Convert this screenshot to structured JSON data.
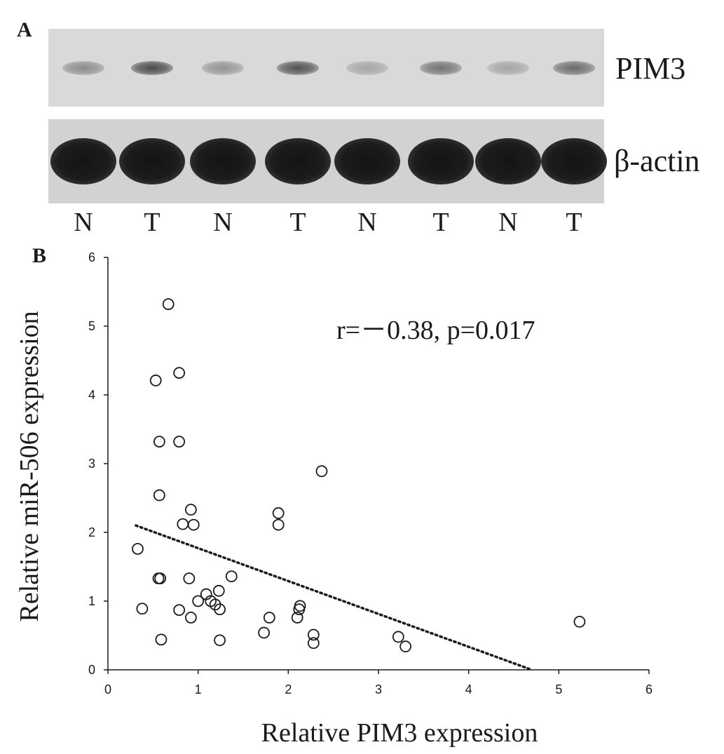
{
  "panels": {
    "a_label": "A",
    "b_label": "B"
  },
  "blot": {
    "rows": [
      {
        "name": "PIM3",
        "intensities": [
          0.35,
          0.75,
          0.3,
          0.7,
          0.2,
          0.5,
          0.2,
          0.55
        ]
      },
      {
        "name": "β-actin",
        "intensities": [
          1,
          1,
          1,
          1,
          1,
          1,
          1,
          1
        ]
      }
    ],
    "lanes": [
      "N",
      "T",
      "N",
      "T",
      "N",
      "T",
      "N",
      "T"
    ]
  },
  "chart_data": {
    "type": "scatter",
    "title": "",
    "xlabel": "Relative PIM3 expression",
    "ylabel": "Relative miR-506 expression",
    "xlim": [
      0,
      6
    ],
    "ylim": [
      0,
      6
    ],
    "xticks": [
      "0",
      "1",
      "2",
      "3",
      "4",
      "5",
      "6"
    ],
    "yticks": [
      "0",
      "1",
      "2",
      "3",
      "4",
      "5",
      "6"
    ],
    "annotation": "r=－0.38, p=0.017",
    "grid": false,
    "marker": "open-circle",
    "points": [
      {
        "x": 0.67,
        "y": 5.32
      },
      {
        "x": 0.53,
        "y": 4.21
      },
      {
        "x": 0.79,
        "y": 4.32
      },
      {
        "x": 0.57,
        "y": 3.32
      },
      {
        "x": 0.79,
        "y": 3.32
      },
      {
        "x": 0.57,
        "y": 2.54
      },
      {
        "x": 2.37,
        "y": 2.89
      },
      {
        "x": 0.92,
        "y": 2.33
      },
      {
        "x": 1.89,
        "y": 2.28
      },
      {
        "x": 0.83,
        "y": 2.12
      },
      {
        "x": 0.95,
        "y": 2.11
      },
      {
        "x": 1.89,
        "y": 2.11
      },
      {
        "x": 0.33,
        "y": 1.76
      },
      {
        "x": 0.56,
        "y": 1.33
      },
      {
        "x": 0.58,
        "y": 1.33
      },
      {
        "x": 0.9,
        "y": 1.33
      },
      {
        "x": 1.37,
        "y": 1.36
      },
      {
        "x": 1.23,
        "y": 1.15
      },
      {
        "x": 1.09,
        "y": 1.1
      },
      {
        "x": 1.0,
        "y": 1.0
      },
      {
        "x": 1.14,
        "y": 1.0
      },
      {
        "x": 1.19,
        "y": 0.95
      },
      {
        "x": 0.38,
        "y": 0.89
      },
      {
        "x": 0.79,
        "y": 0.87
      },
      {
        "x": 1.24,
        "y": 0.88
      },
      {
        "x": 2.13,
        "y": 0.93
      },
      {
        "x": 2.12,
        "y": 0.88
      },
      {
        "x": 0.92,
        "y": 0.76
      },
      {
        "x": 1.79,
        "y": 0.76
      },
      {
        "x": 2.1,
        "y": 0.76
      },
      {
        "x": 5.23,
        "y": 0.7
      },
      {
        "x": 1.73,
        "y": 0.54
      },
      {
        "x": 2.28,
        "y": 0.51
      },
      {
        "x": 3.22,
        "y": 0.48
      },
      {
        "x": 0.59,
        "y": 0.44
      },
      {
        "x": 1.24,
        "y": 0.43
      },
      {
        "x": 2.28,
        "y": 0.39
      },
      {
        "x": 3.3,
        "y": 0.34
      }
    ],
    "trendline": {
      "style": "dotted",
      "start": [
        0.31,
        2.1
      ],
      "end": [
        4.7,
        0.0
      ]
    },
    "colors": {
      "marker": "#1a1a1a",
      "line": "#1a1a1a",
      "background": "#ffffff"
    }
  }
}
